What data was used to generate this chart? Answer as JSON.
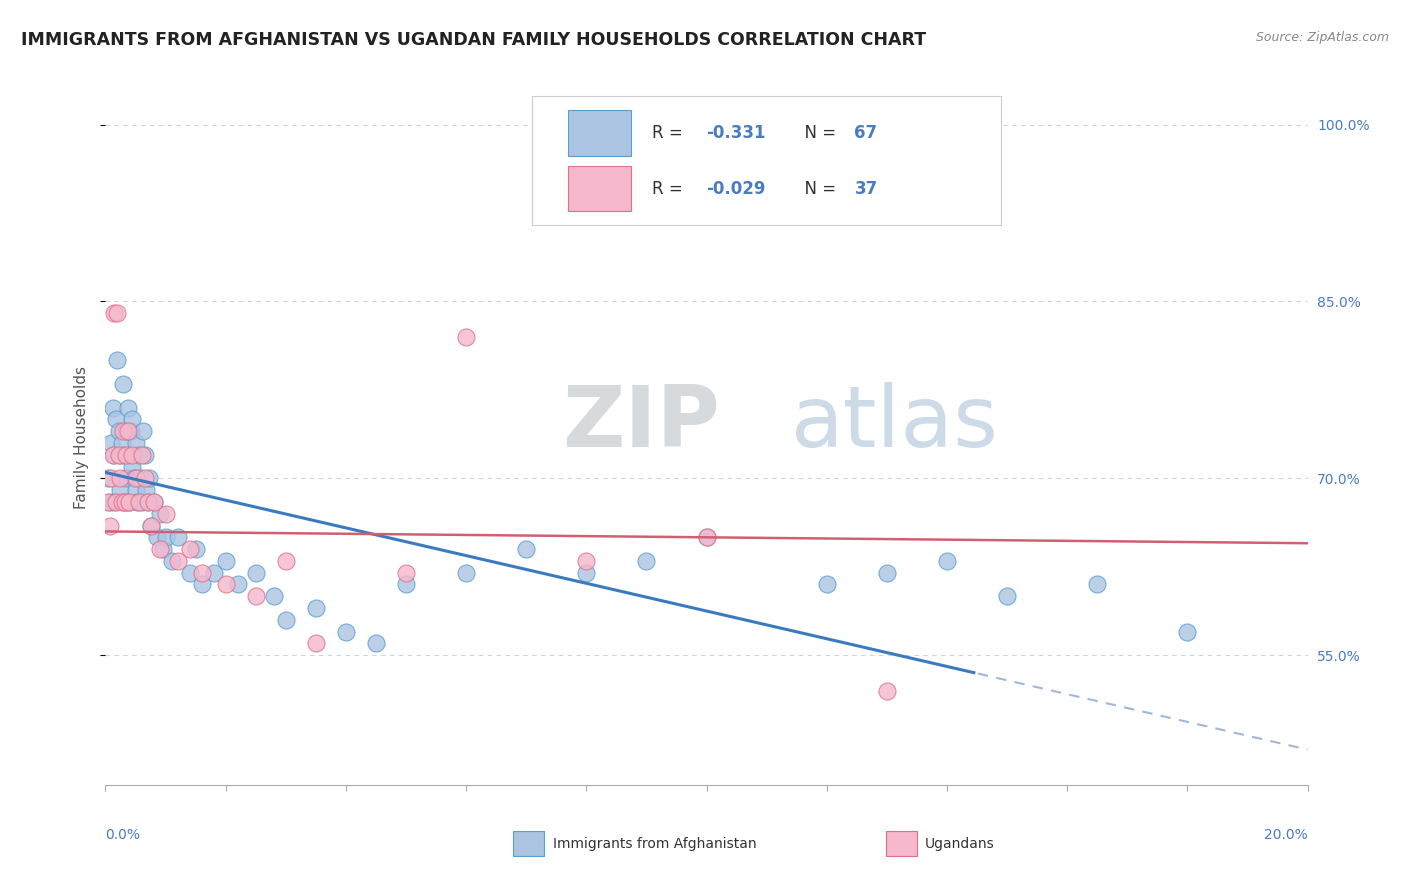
{
  "title": "IMMIGRANTS FROM AFGHANISTAN VS UGANDAN FAMILY HOUSEHOLDS CORRELATION CHART",
  "source": "Source: ZipAtlas.com",
  "ylabel": "Family Households",
  "xlim": [
    0.0,
    20.0
  ],
  "ylim": [
    44.0,
    103.0
  ],
  "ytick_values": [
    55.0,
    70.0,
    85.0,
    100.0
  ],
  "afghanistan_color": "#aac4e2",
  "afghanistan_edge": "#5a9fd4",
  "uganda_color": "#f5b8cc",
  "uganda_edge": "#e0708a",
  "trend_afghanistan_color": "#3a7abf",
  "trend_uganda_color": "#d06070",
  "trend_afghanistan_dashed_color": "#a0b8d8",
  "r_afghanistan": -0.331,
  "n_afghanistan": 67,
  "r_uganda": -0.029,
  "n_uganda": 37,
  "afghanistan_x": [
    0.05,
    0.08,
    0.1,
    0.12,
    0.15,
    0.15,
    0.18,
    0.2,
    0.22,
    0.25,
    0.25,
    0.28,
    0.3,
    0.3,
    0.32,
    0.35,
    0.35,
    0.38,
    0.4,
    0.4,
    0.42,
    0.45,
    0.45,
    0.48,
    0.5,
    0.5,
    0.52,
    0.55,
    0.58,
    0.6,
    0.62,
    0.65,
    0.68,
    0.7,
    0.72,
    0.75,
    0.8,
    0.85,
    0.9,
    0.95,
    1.0,
    1.1,
    1.2,
    1.4,
    1.5,
    1.6,
    1.8,
    2.0,
    2.2,
    2.5,
    2.8,
    3.0,
    3.5,
    4.0,
    4.5,
    5.0,
    6.0,
    7.0,
    8.0,
    9.0,
    10.0,
    12.0,
    13.0,
    14.0,
    15.0,
    16.5,
    18.0
  ],
  "afghanistan_y": [
    70.0,
    68.0,
    73.0,
    76.0,
    72.0,
    68.0,
    75.0,
    80.0,
    74.0,
    72.0,
    69.0,
    73.0,
    72.0,
    78.0,
    68.0,
    74.0,
    70.0,
    76.0,
    72.0,
    68.0,
    74.0,
    75.0,
    71.0,
    70.0,
    73.0,
    69.0,
    68.0,
    72.0,
    70.0,
    68.0,
    74.0,
    72.0,
    69.0,
    68.0,
    70.0,
    66.0,
    68.0,
    65.0,
    67.0,
    64.0,
    65.0,
    63.0,
    65.0,
    62.0,
    64.0,
    61.0,
    62.0,
    63.0,
    61.0,
    62.0,
    60.0,
    58.0,
    59.0,
    57.0,
    56.0,
    61.0,
    62.0,
    64.0,
    62.0,
    63.0,
    65.0,
    61.0,
    62.0,
    63.0,
    60.0,
    61.0,
    57.0
  ],
  "uganda_x": [
    0.05,
    0.08,
    0.1,
    0.12,
    0.15,
    0.18,
    0.2,
    0.22,
    0.25,
    0.28,
    0.3,
    0.32,
    0.35,
    0.38,
    0.4,
    0.45,
    0.5,
    0.55,
    0.6,
    0.65,
    0.7,
    0.75,
    0.8,
    0.9,
    1.0,
    1.2,
    1.4,
    1.6,
    2.0,
    2.5,
    3.0,
    3.5,
    5.0,
    6.0,
    8.0,
    10.0,
    13.0
  ],
  "uganda_y": [
    68.0,
    66.0,
    70.0,
    72.0,
    84.0,
    68.0,
    84.0,
    72.0,
    70.0,
    68.0,
    74.0,
    68.0,
    72.0,
    74.0,
    68.0,
    72.0,
    70.0,
    68.0,
    72.0,
    70.0,
    68.0,
    66.0,
    68.0,
    64.0,
    67.0,
    63.0,
    64.0,
    62.0,
    61.0,
    60.0,
    63.0,
    56.0,
    62.0,
    82.0,
    63.0,
    65.0,
    52.0
  ],
  "watermark_zip": "ZIP",
  "watermark_atlas": "atlas",
  "background_color": "#ffffff",
  "grid_color": "#c8d4e8",
  "legend_line1": "R =  -0.331   N = 67",
  "legend_line2": "R =  -0.029   N = 37",
  "legend_r1": "-0.331",
  "legend_n1": "67",
  "legend_r2": "-0.029",
  "legend_n2": "37",
  "tick_color": "#4a7cc0",
  "axis_label_color": "#555555"
}
